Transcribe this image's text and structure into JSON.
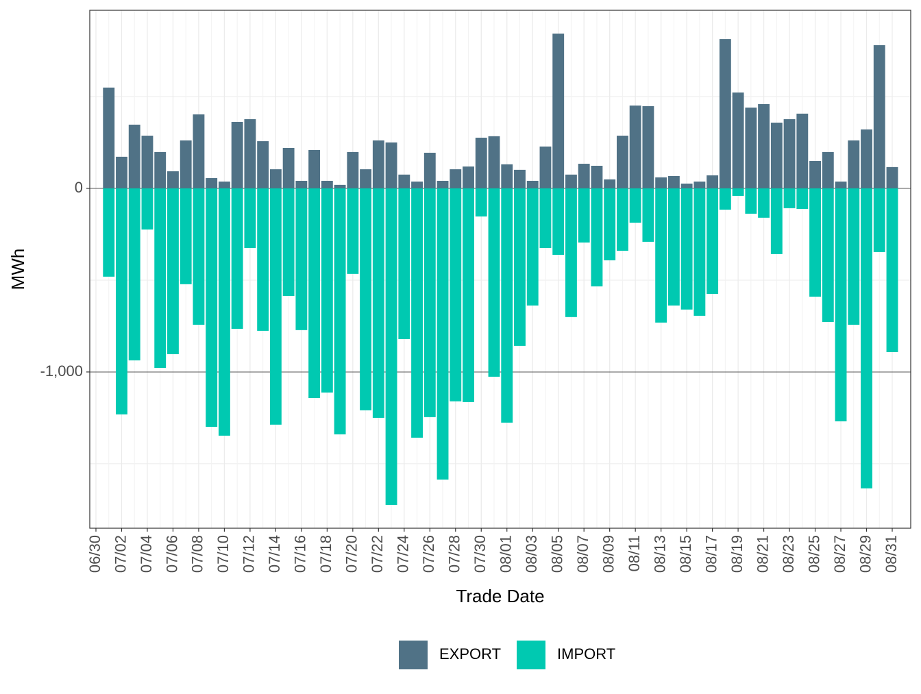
{
  "chart_data": {
    "type": "bar",
    "stacked": "diverging",
    "x_label": "Trade Date",
    "y_label": "MWh",
    "categories": [
      "07/01",
      "07/02",
      "07/03",
      "07/04",
      "07/05",
      "07/06",
      "07/07",
      "07/08",
      "07/09",
      "07/10",
      "07/11",
      "07/12",
      "07/13",
      "07/14",
      "07/15",
      "07/16",
      "07/17",
      "07/18",
      "07/19",
      "07/20",
      "07/21",
      "07/22",
      "07/23",
      "07/24",
      "07/25",
      "07/26",
      "07/27",
      "07/28",
      "07/29",
      "07/30",
      "07/31",
      "08/01",
      "08/02",
      "08/03",
      "08/04",
      "08/05",
      "08/06",
      "08/07",
      "08/08",
      "08/09",
      "08/10",
      "08/11",
      "08/12",
      "08/13",
      "08/14",
      "08/15",
      "08/16",
      "08/17",
      "08/18",
      "08/19",
      "08/20",
      "08/21",
      "08/22",
      "08/23",
      "08/24",
      "08/25",
      "08/26",
      "08/27",
      "08/28",
      "08/29",
      "08/30",
      "08/31"
    ],
    "series": [
      {
        "name": "EXPORT",
        "color": "#507286",
        "values": [
          549,
          172,
          347,
          287,
          198,
          93,
          261,
          403,
          56,
          37,
          362,
          377,
          257,
          104,
          220,
          41,
          209,
          41,
          19,
          198,
          104,
          261,
          250,
          75,
          37,
          194,
          41,
          104,
          119,
          276,
          284,
          131,
          101,
          41,
          228,
          843,
          75,
          134,
          123,
          49,
          287,
          451,
          448,
          60,
          67,
          26,
          37,
          71,
          813,
          522,
          440,
          459,
          358,
          377,
          407,
          149,
          198,
          37,
          261,
          321,
          780,
          116
        ]
      },
      {
        "name": "IMPORT",
        "color": "#00c9b1",
        "values": [
          -481,
          -1231,
          -937,
          -224,
          -978,
          -903,
          -522,
          -743,
          -1299,
          -1347,
          -765,
          -325,
          -776,
          -1287,
          -586,
          -772,
          -1142,
          -1112,
          -1340,
          -466,
          -1209,
          -1250,
          -1724,
          -821,
          -1358,
          -1246,
          -1586,
          -1160,
          -1164,
          -153,
          -1026,
          -1276,
          -858,
          -638,
          -325,
          -362,
          -701,
          -295,
          -534,
          -392,
          -340,
          -187,
          -291,
          -731,
          -638,
          -660,
          -694,
          -575,
          -116,
          -41,
          -138,
          -160,
          -358,
          -108,
          -112,
          -590,
          -728,
          -1269,
          -743,
          -1634,
          -347,
          -892
        ]
      }
    ],
    "xticks": [
      "06/30",
      "07/02",
      "07/04",
      "07/06",
      "07/08",
      "07/10",
      "07/12",
      "07/14",
      "07/16",
      "07/18",
      "07/20",
      "07/22",
      "07/24",
      "07/26",
      "07/28",
      "07/30",
      "08/01",
      "08/03",
      "08/05",
      "08/07",
      "08/09",
      "08/11",
      "08/13",
      "08/15",
      "08/17",
      "08/19",
      "08/21",
      "08/23",
      "08/25",
      "08/27",
      "08/29",
      "08/31"
    ],
    "ylim": [
      -1851,
      970
    ],
    "yticks": [
      {
        "value": -1000,
        "label": "-1,000"
      },
      0
    ],
    "yminor": [
      -1500,
      -500,
      500
    ],
    "grid": true,
    "legend": "bottom"
  }
}
